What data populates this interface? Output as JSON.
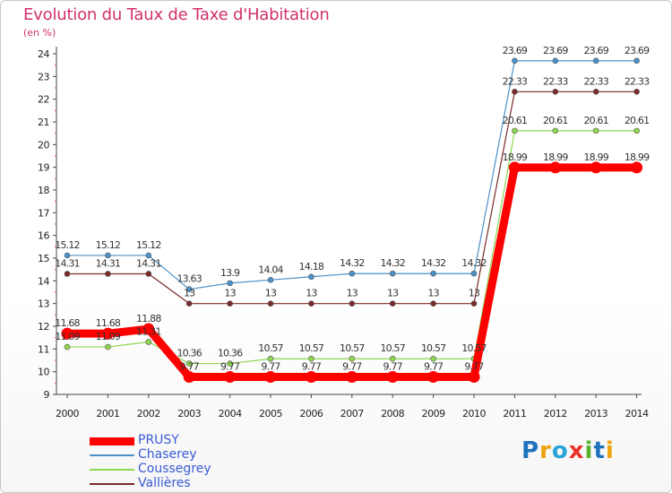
{
  "title": "Evolution du Taux de Taxe d'Habitation",
  "unit": "(en %)",
  "brand": {
    "text": "Proxiti",
    "letter_colors": [
      "#1e73be",
      "#f0a20c",
      "#2aa4d8",
      "#e8332a",
      "#59b22f",
      "#1e73be",
      "#f0a20c"
    ]
  },
  "chart_data": {
    "type": "line",
    "x": [
      2000,
      2001,
      2002,
      2003,
      2004,
      2005,
      2006,
      2007,
      2008,
      2009,
      2010,
      2011,
      2012,
      2013,
      2014
    ],
    "ylim": [
      9,
      24
    ],
    "yticks": [
      9,
      10,
      11,
      12,
      13,
      14,
      15,
      16,
      17,
      18,
      19,
      20,
      21,
      22,
      23,
      24
    ],
    "grid": false,
    "legend_position": "bottom-left",
    "series": [
      {
        "name": "PRUSY",
        "color": "#ff0000",
        "width": 9,
        "values": [
          11.68,
          11.68,
          11.88,
          9.77,
          9.77,
          9.77,
          9.77,
          9.77,
          9.77,
          9.77,
          9.77,
          18.99,
          18.99,
          18.99,
          18.99
        ],
        "labels": [
          "11.68",
          "11.68",
          "11.88",
          "9.77",
          "9.77",
          "9.77",
          "9.77",
          "9.77",
          "9.77",
          "9.77",
          "9.77",
          "18.99",
          "18.99",
          "18.99",
          "18.99"
        ]
      },
      {
        "name": "Chaserey",
        "color": "#4a90c9",
        "width": 1.2,
        "values": [
          15.12,
          15.12,
          15.12,
          13.63,
          13.9,
          14.04,
          14.18,
          14.32,
          14.32,
          14.32,
          14.32,
          23.69,
          23.69,
          23.69,
          23.69
        ],
        "labels": [
          "15.12",
          "15.12",
          "15.12",
          "13.63",
          "13.9",
          "14.04",
          "14.18",
          "14.32",
          "14.32",
          "14.32",
          "14.32",
          "23.69",
          "23.69",
          "23.69",
          "23.69"
        ]
      },
      {
        "name": "Coussegrey",
        "color": "#8fd650",
        "width": 1.2,
        "values": [
          11.09,
          11.09,
          11.31,
          10.36,
          10.36,
          10.57,
          10.57,
          10.57,
          10.57,
          10.57,
          10.57,
          20.61,
          20.61,
          20.61,
          20.61
        ],
        "labels": [
          "11.09",
          "11.09",
          "11.31",
          "10.36",
          "10.36",
          "10.57",
          "10.57",
          "10.57",
          "10.57",
          "10.57",
          "10.57",
          "20.61",
          "20.61",
          "20.61",
          "20.61"
        ]
      },
      {
        "name": "Vallières",
        "color": "#7b2a2a",
        "width": 1.2,
        "values": [
          14.31,
          14.31,
          14.31,
          13,
          13,
          13,
          13,
          13,
          13,
          13,
          13,
          22.33,
          22.33,
          22.33,
          22.33
        ],
        "labels": [
          "14.31",
          "14.31",
          "14.31",
          "13",
          "13",
          "13",
          "13",
          "13",
          "13",
          "13",
          "13",
          "22.33",
          "22.33",
          "22.33",
          "22.33"
        ]
      }
    ]
  }
}
